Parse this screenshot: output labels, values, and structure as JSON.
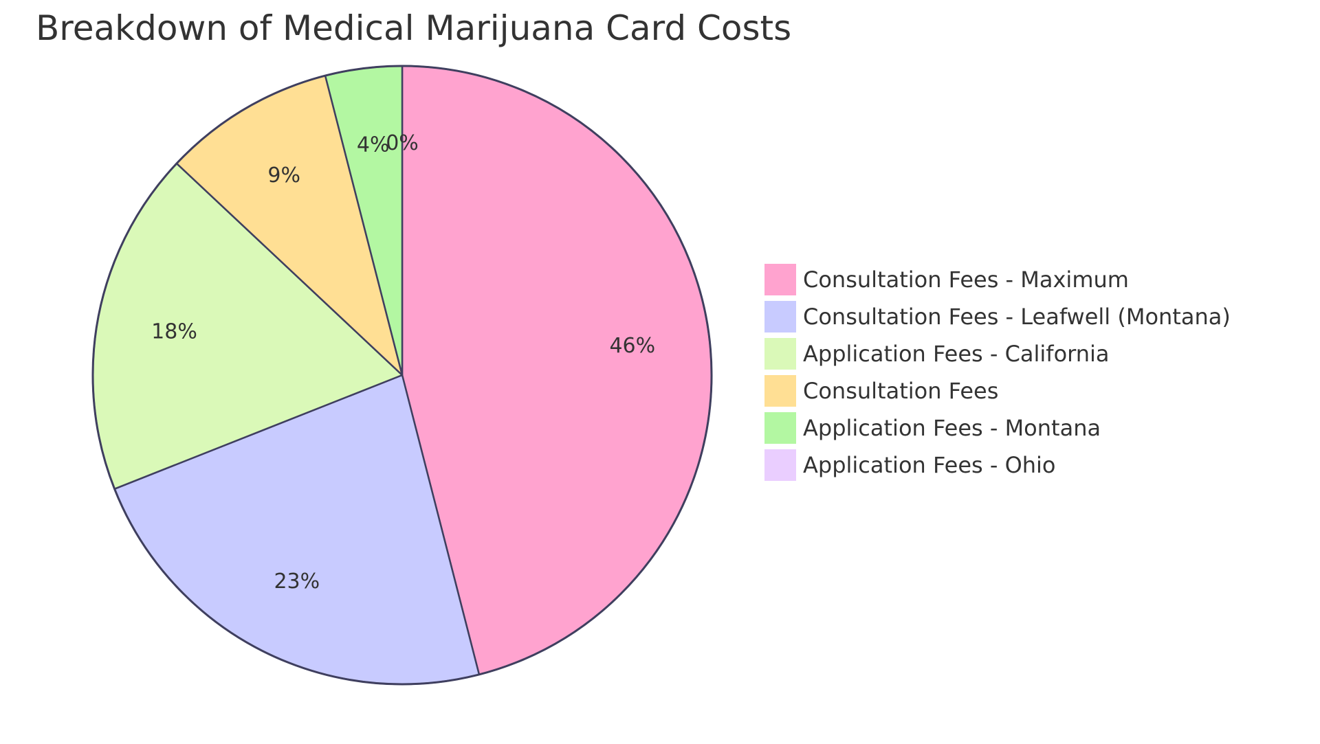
{
  "chart_data": {
    "type": "pie",
    "title": "Breakdown of Medical Marijuana Card Costs",
    "slices": [
      {
        "label": "Consultation Fees - Maximum",
        "value": 46,
        "display": "46%",
        "color": "#FFA3CF"
      },
      {
        "label": "Consultation Fees - Leafwell (Montana)",
        "value": 23,
        "display": "23%",
        "color": "#C8CBFF"
      },
      {
        "label": "Application Fees - California",
        "value": 18,
        "display": "18%",
        "color": "#DAF9B8"
      },
      {
        "label": "Consultation Fees",
        "value": 9,
        "display": "9%",
        "color": "#FFDF94"
      },
      {
        "label": "Application Fees - Montana",
        "value": 4,
        "display": "4%",
        "color": "#B3F7A2"
      },
      {
        "label": "Application Fees - Ohio",
        "value": 0,
        "display": "0%",
        "color": "#EACEFF"
      }
    ],
    "legend_position": "right",
    "stroke_color": "#3F3F5F"
  }
}
